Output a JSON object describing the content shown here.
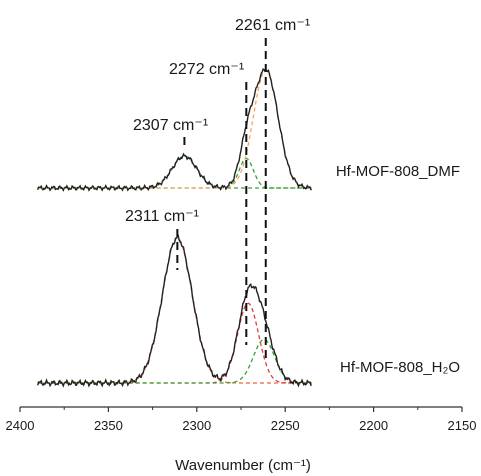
{
  "chart_data": {
    "type": "line",
    "xlabel": "Wavenumber (cm⁻¹)",
    "xlim": [
      2400,
      2150
    ],
    "x_ticks": [
      "2400",
      "2350",
      "2300",
      "2250",
      "2200",
      "2150"
    ],
    "y_ticks_shown": false,
    "grid": false,
    "series": [
      {
        "name": "Hf-MOF-808_DMF",
        "total": {
          "color": "#222222",
          "style": "solid"
        },
        "baseline": 0,
        "peaks": [
          {
            "center": 2307,
            "height": 0.27,
            "sigma": 7.0,
            "color": "#3aa13a",
            "style": "dashed"
          },
          {
            "center": 2272,
            "height": 0.25,
            "sigma": 4.0,
            "color": "#3aa13a",
            "style": "dashed"
          },
          {
            "center": 2261,
            "height": 1.0,
            "sigma": 7.0,
            "color": "#f4a460",
            "style": "dashed"
          }
        ],
        "peak_labels": [
          {
            "text": "2307 cm⁻¹",
            "position": 2307
          },
          {
            "text": "2272 cm⁻¹",
            "position": 2272
          },
          {
            "text": "2261 cm⁻¹",
            "position": 2261
          }
        ]
      },
      {
        "name": "Hf-MOF-808_H₂O",
        "total": {
          "color": "#222222",
          "style": "solid"
        },
        "baseline": 0,
        "peaks": [
          {
            "center": 2311,
            "height": 1.0,
            "sigma": 8.5,
            "color": "#e8663c",
            "style": "dashed"
          },
          {
            "center": 2271,
            "height": 0.55,
            "sigma": 6.0,
            "color": "#e23b3b",
            "style": "dashed"
          },
          {
            "center": 2262,
            "height": 0.3,
            "sigma": 6.0,
            "color": "#3aa13a",
            "style": "dashed"
          }
        ],
        "peak_labels": [
          {
            "text": "2311 cm⁻¹",
            "position": 2311
          }
        ]
      }
    ]
  }
}
